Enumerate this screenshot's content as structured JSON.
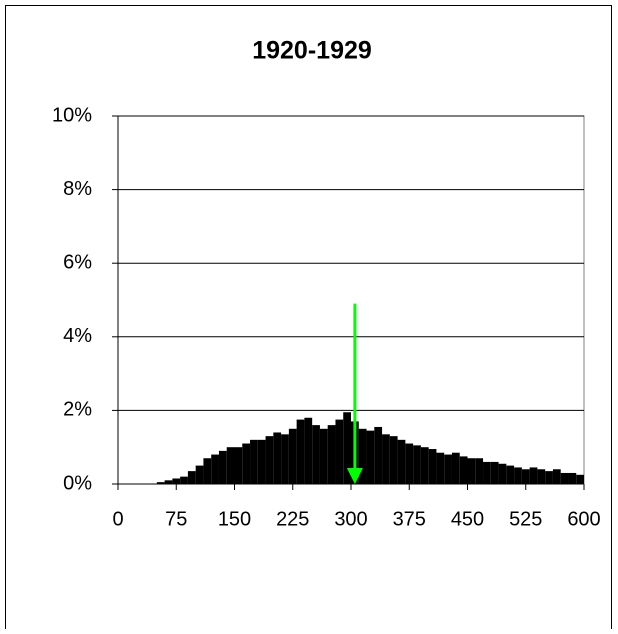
{
  "chart_data": {
    "type": "histogram",
    "title": "1920-1929",
    "bins": [
      0,
      10,
      20,
      30,
      40,
      50,
      60,
      70,
      80,
      90,
      100,
      110,
      120,
      130,
      140,
      150,
      160,
      170,
      180,
      190,
      200,
      210,
      220,
      230,
      240,
      250,
      260,
      270,
      280,
      290,
      300,
      310,
      320,
      330,
      340,
      350,
      360,
      370,
      380,
      390,
      400,
      410,
      420,
      430,
      440,
      450,
      460,
      470,
      480,
      490,
      500,
      510,
      520,
      530,
      540,
      550,
      560,
      570,
      580,
      590,
      600
    ],
    "values": [
      0,
      0,
      0,
      0,
      0,
      0.05,
      0.1,
      0.15,
      0.2,
      0.35,
      0.5,
      0.7,
      0.8,
      0.9,
      1.0,
      1.0,
      1.1,
      1.2,
      1.2,
      1.3,
      1.4,
      1.35,
      1.5,
      1.75,
      1.8,
      1.6,
      1.5,
      1.6,
      1.75,
      1.95,
      1.7,
      1.5,
      1.45,
      1.55,
      1.35,
      1.3,
      1.2,
      1.1,
      1.05,
      1.0,
      0.95,
      0.85,
      0.8,
      0.85,
      0.75,
      0.7,
      0.7,
      0.6,
      0.6,
      0.55,
      0.5,
      0.45,
      0.4,
      0.45,
      0.4,
      0.35,
      0.4,
      0.3,
      0.3,
      0.25
    ],
    "color": "#000000",
    "xlim": [
      0,
      600
    ],
    "xticks": [
      0,
      75,
      150,
      225,
      300,
      375,
      450,
      525,
      600
    ],
    "ylim": [
      0,
      10
    ],
    "yticks": [
      {
        "value": 0,
        "label": "0%"
      },
      {
        "value": 2,
        "label": "2%"
      },
      {
        "value": 4,
        "label": "4%"
      },
      {
        "value": 6,
        "label": "6%"
      },
      {
        "value": 8,
        "label": "8%"
      },
      {
        "value": 10,
        "label": "10%"
      }
    ],
    "grid": true,
    "arrow": {
      "x": 305,
      "from": 4.9,
      "to": 0,
      "color": "#00ff00"
    }
  }
}
